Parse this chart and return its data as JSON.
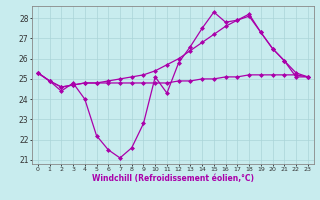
{
  "xlabel": "Windchill (Refroidissement éolien,°C)",
  "background_color": "#c8ecee",
  "grid_color": "#aad4d8",
  "line_color": "#aa00aa",
  "xlim": [
    -0.5,
    23.5
  ],
  "ylim": [
    20.8,
    28.6
  ],
  "yticks": [
    21,
    22,
    23,
    24,
    25,
    26,
    27,
    28
  ],
  "xticks": [
    0,
    1,
    2,
    3,
    4,
    5,
    6,
    7,
    8,
    9,
    10,
    11,
    12,
    13,
    14,
    15,
    16,
    17,
    18,
    19,
    20,
    21,
    22,
    23
  ],
  "series": [
    [
      25.3,
      24.9,
      24.4,
      24.8,
      24.0,
      22.2,
      21.5,
      21.1,
      21.6,
      22.8,
      25.1,
      24.3,
      25.8,
      26.6,
      27.5,
      28.3,
      27.8,
      27.9,
      28.2,
      27.3,
      26.5,
      25.9,
      25.1,
      25.1
    ],
    [
      25.3,
      24.9,
      24.6,
      24.7,
      24.8,
      24.8,
      24.9,
      25.0,
      25.1,
      25.2,
      25.4,
      25.7,
      26.0,
      26.4,
      26.8,
      27.2,
      27.6,
      27.9,
      28.1,
      27.3,
      26.5,
      25.9,
      25.3,
      25.1
    ],
    [
      25.3,
      24.9,
      24.6,
      24.7,
      24.8,
      24.8,
      24.8,
      24.8,
      24.8,
      24.8,
      24.8,
      24.8,
      24.9,
      24.9,
      25.0,
      25.0,
      25.1,
      25.1,
      25.2,
      25.2,
      25.2,
      25.2,
      25.2,
      25.1
    ]
  ]
}
